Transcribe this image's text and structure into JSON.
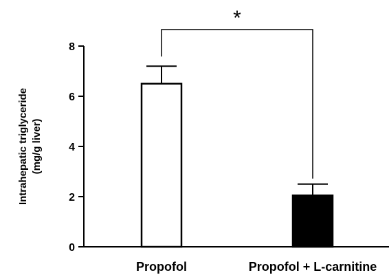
{
  "chart_data": {
    "type": "bar",
    "categories": [
      "Propofol",
      "Propofol + L-carnitine"
    ],
    "values": [
      6.5,
      2.05
    ],
    "errors": [
      0.7,
      0.45
    ],
    "bar_colors": [
      "#ffffff",
      "#000000"
    ],
    "ylabel_lines": [
      "Intrahepatic triglyceride",
      "(mg/g liver)"
    ],
    "yticks": [
      "0",
      "2",
      "4",
      "6",
      "8"
    ],
    "ylim": [
      0,
      8
    ],
    "grid": false,
    "significance": {
      "between": [
        0,
        1
      ],
      "label": "*"
    }
  }
}
